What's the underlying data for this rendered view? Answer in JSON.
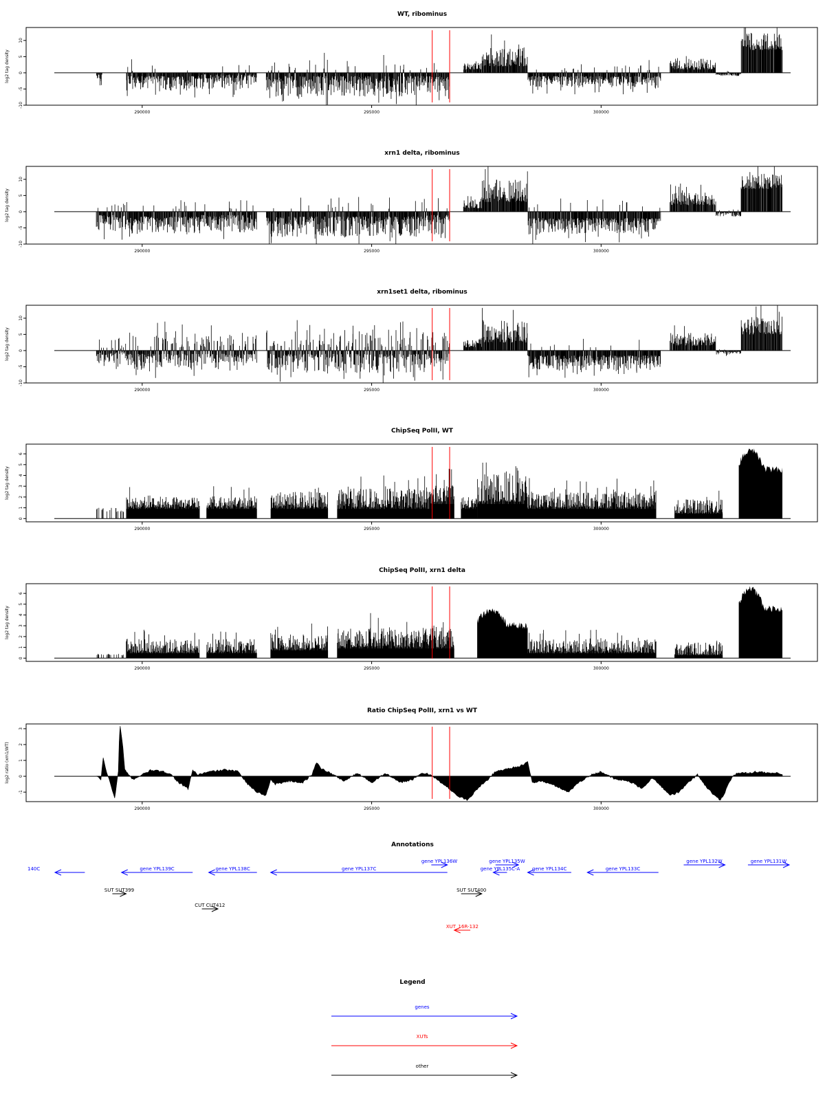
{
  "xaxis": {
    "range": [
      288100,
      304100
    ],
    "ticks": [
      290000,
      295000,
      300000
    ]
  },
  "markers": {
    "color": "#ff0000",
    "x": [
      296320,
      296700
    ]
  },
  "colors": {
    "bars": "#000000",
    "genes": "#0000ff",
    "XUTs": "#ff0000",
    "other": "#000000"
  },
  "chart_data": [
    {
      "type": "bar",
      "title": "WT, ribominus",
      "ylabel": "log2 tag density",
      "ylim": [
        -10,
        14
      ],
      "yticks": [
        -10,
        -5,
        0,
        5,
        10
      ],
      "segments": [
        {
          "x": [
            289000,
            289130
          ],
          "mode": "neg",
          "range": [
            0.5,
            4.5
          ]
        },
        {
          "x": [
            289650,
            291250
          ],
          "mode": "neg",
          "range": [
            1,
            5.5
          ]
        },
        {
          "x": [
            291250,
            292500
          ],
          "mode": "neg",
          "range": [
            0.5,
            5
          ]
        },
        {
          "x": [
            292700,
            296200
          ],
          "mode": "neg",
          "range": [
            1,
            7.5
          ]
        },
        {
          "x": [
            296200,
            296700
          ],
          "mode": "neg",
          "range": [
            1,
            6
          ]
        },
        {
          "x": [
            297000,
            297400
          ],
          "mode": "pos",
          "range": [
            1,
            3
          ]
        },
        {
          "x": [
            297400,
            298400
          ],
          "mode": "pos",
          "range": [
            2,
            8
          ]
        },
        {
          "x": [
            298400,
            301300
          ],
          "mode": "neg",
          "range": [
            1,
            4.5
          ]
        },
        {
          "x": [
            301500,
            302500
          ],
          "mode": "pos",
          "range": [
            1,
            4.5
          ]
        },
        {
          "x": [
            302500,
            303050
          ],
          "mode": "neg",
          "range": [
            0.3,
            1
          ]
        },
        {
          "x": [
            303050,
            303950
          ],
          "mode": "pos",
          "range": [
            7,
            12.5
          ]
        }
      ]
    },
    {
      "type": "bar",
      "title": "xrn1 delta, ribominus",
      "ylabel": "log2 tag density",
      "ylim": [
        -10,
        14
      ],
      "yticks": [
        -10,
        -5,
        0,
        5,
        10
      ],
      "segments": [
        {
          "x": [
            289000,
            289700
          ],
          "mode": "neg",
          "range": [
            1,
            6
          ]
        },
        {
          "x": [
            289700,
            291300
          ],
          "mode": "neg",
          "range": [
            1.5,
            7
          ]
        },
        {
          "x": [
            291300,
            292500
          ],
          "mode": "neg",
          "range": [
            1,
            6.5
          ]
        },
        {
          "x": [
            292700,
            296200
          ],
          "mode": "neg",
          "range": [
            1.5,
            8
          ]
        },
        {
          "x": [
            296200,
            296700
          ],
          "mode": "neg",
          "range": [
            1,
            7
          ]
        },
        {
          "x": [
            297000,
            297400
          ],
          "mode": "pos",
          "range": [
            1,
            4
          ]
        },
        {
          "x": [
            297400,
            298400
          ],
          "mode": "pos",
          "range": [
            3,
            10
          ]
        },
        {
          "x": [
            298400,
            301300
          ],
          "mode": "neg",
          "range": [
            2,
            7
          ]
        },
        {
          "x": [
            301500,
            302500
          ],
          "mode": "pos",
          "range": [
            2,
            6
          ]
        },
        {
          "x": [
            302500,
            303050
          ],
          "mode": "neg",
          "range": [
            0.3,
            1.5
          ]
        },
        {
          "x": [
            303050,
            303950
          ],
          "mode": "pos",
          "range": [
            7,
            12
          ]
        }
      ]
    },
    {
      "type": "bar",
      "title": "xrn1set1 delta, ribominus",
      "ylabel": "log2 tag density",
      "ylim": [
        -10,
        14
      ],
      "yticks": [
        -10,
        -5,
        0,
        5,
        10
      ],
      "segments": [
        {
          "x": [
            289000,
            289700
          ],
          "mode": "mix",
          "range": [
            0.5,
            5
          ]
        },
        {
          "x": [
            289700,
            291300
          ],
          "mode": "mix",
          "range": [
            1,
            6
          ]
        },
        {
          "x": [
            291300,
            292500
          ],
          "mode": "mix",
          "range": [
            1,
            5.5
          ]
        },
        {
          "x": [
            292700,
            296200
          ],
          "mode": "mix",
          "range": [
            1,
            7
          ]
        },
        {
          "x": [
            296200,
            296700
          ],
          "mode": "mix",
          "range": [
            1,
            6
          ]
        },
        {
          "x": [
            297000,
            297400
          ],
          "mode": "pos",
          "range": [
            1,
            3.5
          ]
        },
        {
          "x": [
            297400,
            298400
          ],
          "mode": "pos",
          "range": [
            2.5,
            9.5
          ]
        },
        {
          "x": [
            298400,
            301300
          ],
          "mode": "neg",
          "range": [
            1.5,
            6
          ]
        },
        {
          "x": [
            301500,
            302500
          ],
          "mode": "pos",
          "range": [
            1.5,
            5.5
          ]
        },
        {
          "x": [
            302500,
            303050
          ],
          "mode": "neg",
          "range": [
            0.3,
            1.2
          ]
        },
        {
          "x": [
            303050,
            303950
          ],
          "mode": "pos",
          "range": [
            5,
            10.5
          ]
        }
      ]
    },
    {
      "type": "bar",
      "title": "ChipSeq PolII, WT",
      "ylabel": "log2 tag density",
      "ylim": [
        -0.3,
        6.9
      ],
      "yticks": [
        0,
        1,
        2,
        3,
        4,
        5,
        6
      ],
      "segments": [
        {
          "x": [
            289000,
            289600
          ],
          "mode": "spike",
          "range": [
            0,
            1
          ]
        },
        {
          "x": [
            289650,
            291250
          ],
          "mode": "pos",
          "range": [
            1,
            2
          ]
        },
        {
          "x": [
            291400,
            292500
          ],
          "mode": "pos",
          "range": [
            1,
            2
          ]
        },
        {
          "x": [
            292800,
            294050
          ],
          "mode": "pos",
          "range": [
            1,
            2.5
          ]
        },
        {
          "x": [
            294250,
            296300
          ],
          "mode": "pos",
          "range": [
            1,
            2.8
          ]
        },
        {
          "x": [
            296300,
            296800
          ],
          "mode": "pos",
          "range": [
            1.5,
            3.2
          ]
        },
        {
          "x": [
            296950,
            297300
          ],
          "mode": "pos",
          "range": [
            1,
            2
          ]
        },
        {
          "x": [
            297300,
            298400
          ],
          "mode": "pos",
          "range": [
            1.5,
            4.2
          ]
        },
        {
          "x": [
            298400,
            301200
          ],
          "mode": "pos",
          "range": [
            1,
            2.5
          ]
        },
        {
          "x": [
            301600,
            302650
          ],
          "mode": "pos",
          "range": [
            0.5,
            1.8
          ]
        },
        {
          "x": [
            303000,
            303950
          ],
          "mode": "solid",
          "range": [
            4.5,
            6.5
          ]
        }
      ]
    },
    {
      "type": "bar",
      "title": "ChipSeq PolII, xrn1 delta",
      "ylabel": "log2 tag density",
      "ylim": [
        -0.3,
        6.9
      ],
      "yticks": [
        0,
        1,
        2,
        3,
        4,
        5,
        6
      ],
      "segments": [
        {
          "x": [
            289000,
            289600
          ],
          "mode": "spike",
          "range": [
            0,
            0.4
          ]
        },
        {
          "x": [
            289650,
            291250
          ],
          "mode": "pos",
          "range": [
            0.5,
            1.8
          ]
        },
        {
          "x": [
            291400,
            292500
          ],
          "mode": "pos",
          "range": [
            0.5,
            1.8
          ]
        },
        {
          "x": [
            292800,
            294050
          ],
          "mode": "pos",
          "range": [
            0.8,
            2.2
          ]
        },
        {
          "x": [
            294250,
            296300
          ],
          "mode": "pos",
          "range": [
            1,
            2.8
          ]
        },
        {
          "x": [
            296300,
            296800
          ],
          "mode": "pos",
          "range": [
            1,
            3.2
          ]
        },
        {
          "x": [
            297300,
            298400
          ],
          "mode": "solid",
          "range": [
            3,
            4.5
          ]
        },
        {
          "x": [
            298400,
            301200
          ],
          "mode": "pos",
          "range": [
            0.5,
            1.8
          ]
        },
        {
          "x": [
            301600,
            302650
          ],
          "mode": "pos",
          "range": [
            0.3,
            1.5
          ]
        },
        {
          "x": [
            303000,
            303950
          ],
          "mode": "solid",
          "range": [
            4.5,
            6.5
          ]
        }
      ]
    },
    {
      "type": "area",
      "title": "Ratio ChipSeq PolII, xrn1 vs WT",
      "ylabel": "log2 ratio (xrn1/WT)",
      "ylim": [
        -1.6,
        3.3
      ],
      "yticks": [
        -1,
        0,
        1,
        2,
        3
      ],
      "x": [
        289000,
        289100,
        289150,
        289200,
        289300,
        289400,
        289480,
        289500,
        289520,
        289580,
        289620,
        289700,
        289800,
        290000,
        290200,
        290400,
        290600,
        290800,
        291000,
        291100,
        291200,
        291500,
        291800,
        292100,
        292300,
        292500,
        292700,
        292800,
        292900,
        293200,
        293500,
        293700,
        293800,
        293900,
        294100,
        294400,
        294700,
        295000,
        295300,
        295600,
        295900,
        296100,
        296300,
        296500,
        296700,
        296900,
        297100,
        297300,
        297500,
        297700,
        298000,
        298300,
        298400,
        298500,
        298700,
        299000,
        299300,
        299500,
        299800,
        300000,
        300300,
        300600,
        300900,
        301100,
        301300,
        301500,
        301700,
        301900,
        302100,
        302300,
        302500,
        302600,
        302700,
        302800,
        302900,
        303000,
        303200,
        303400,
        303600,
        303800,
        303950
      ],
      "y": [
        0,
        -0.2,
        1.2,
        0.5,
        -0.4,
        -1.4,
        0.3,
        2.2,
        3.2,
        1.8,
        0.4,
        0.1,
        -0.2,
        0.1,
        0.4,
        0.3,
        0.2,
        -0.4,
        -0.8,
        0.4,
        0.1,
        0.3,
        0.4,
        0.3,
        -0.5,
        -1.0,
        -1.2,
        -0.2,
        -0.5,
        -0.3,
        -0.4,
        0.1,
        0.9,
        0.5,
        0.2,
        -0.3,
        0.2,
        -0.4,
        0.2,
        -0.4,
        -0.2,
        0.2,
        0.1,
        -0.4,
        -0.8,
        -1.3,
        -1.5,
        -0.8,
        -0.3,
        0.3,
        0.5,
        0.7,
        0.9,
        -0.4,
        -0.3,
        -0.6,
        -1.0,
        -0.4,
        0.1,
        0.3,
        -0.2,
        -0.3,
        -0.8,
        -0.1,
        -0.6,
        -1.2,
        -1.0,
        -0.4,
        0.1,
        -0.7,
        -1.3,
        -1.5,
        -1.0,
        -0.3,
        0.1,
        0.2,
        0.2,
        0.3,
        0.2,
        0.2,
        0.1
      ]
    }
  ],
  "annotations": {
    "title": "Annotations",
    "items": [
      {
        "label": "140C",
        "x1": 288100,
        "x2": 288750,
        "lane": 0,
        "dir": "left",
        "type": "gene"
      },
      {
        "label": "gene YPL139C",
        "x1": 289550,
        "x2": 291100,
        "lane": 0,
        "dir": "left",
        "type": "gene"
      },
      {
        "label": "gene YPL138C",
        "x1": 291450,
        "x2": 292500,
        "lane": 0,
        "dir": "left",
        "type": "gene"
      },
      {
        "label": "gene YPL137C",
        "x1": 292800,
        "x2": 296650,
        "lane": 0,
        "dir": "left",
        "type": "gene"
      },
      {
        "label": "gene YPL136W",
        "x1": 296300,
        "x2": 296650,
        "lane": 1,
        "dir": "right",
        "type": "gene"
      },
      {
        "label": "gene YPL135W",
        "x1": 297700,
        "x2": 298200,
        "lane": 1,
        "dir": "right",
        "type": "gene"
      },
      {
        "label": "gene YPL135C-A",
        "x1": 297650,
        "x2": 297950,
        "lane": 0,
        "dir": "left",
        "type": "gene"
      },
      {
        "label": "gene YPL134C",
        "x1": 298400,
        "x2": 299350,
        "lane": 0,
        "dir": "left",
        "type": "gene"
      },
      {
        "label": "gene YPL133C",
        "x1": 299700,
        "x2": 301250,
        "lane": 0,
        "dir": "left",
        "type": "gene"
      },
      {
        "label": "gene YPL132W",
        "x1": 301800,
        "x2": 302700,
        "lane": 1,
        "dir": "right",
        "type": "gene"
      },
      {
        "label": "gene YPL131W",
        "x1": 303200,
        "x2": 304100,
        "lane": 1,
        "dir": "right",
        "type": "gene"
      },
      {
        "label": "SUT SUT399",
        "x1": 289350,
        "x2": 289650,
        "lane": 2,
        "dir": "right",
        "type": "other"
      },
      {
        "label": "SUT SUT400",
        "x1": 296950,
        "x2": 297400,
        "lane": 2,
        "dir": "right",
        "type": "other"
      },
      {
        "label": "CUT CUT412",
        "x1": 291300,
        "x2": 291650,
        "lane": 3,
        "dir": "right",
        "type": "other"
      },
      {
        "label": "XUT_16R-132",
        "x1": 296800,
        "x2": 297150,
        "lane": 4,
        "dir": "left",
        "type": "XUT"
      }
    ]
  },
  "legend": {
    "title": "Legend",
    "items": [
      {
        "label": "genes",
        "type": "gene"
      },
      {
        "label": "XUTs",
        "type": "XUT"
      },
      {
        "label": "other",
        "type": "other"
      }
    ]
  }
}
